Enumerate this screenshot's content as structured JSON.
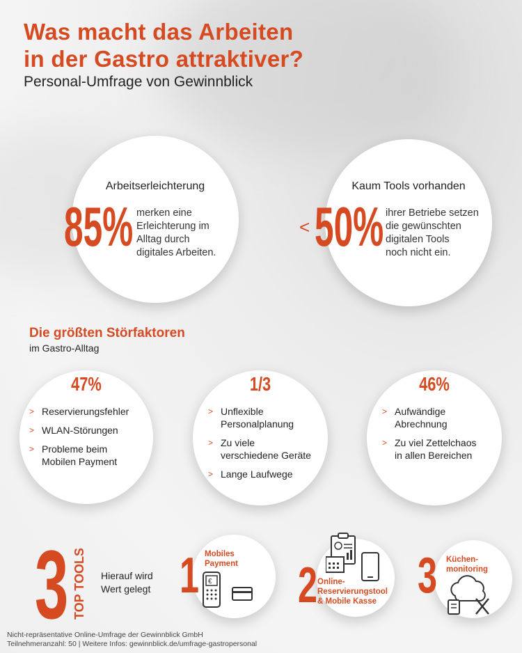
{
  "header": {
    "title_line1": "Was macht das Arbeiten",
    "title_line2": "in der Gastro attraktiver?",
    "subtitle": "Personal-Umfrage von Gewinnblick"
  },
  "stats": [
    {
      "title": "Arbeitserleichterung",
      "prefix": "",
      "value": "85%",
      "description_lines": [
        "merken eine",
        "Erleichterung im",
        "Alltag durch",
        "digitales Arbeiten."
      ]
    },
    {
      "title": "Kaum Tools vorhanden",
      "prefix": "<",
      "value": "50%",
      "description_lines": [
        "ihrer Betriebe setzen",
        "die gewünschten",
        "digitalen Tools",
        "noch nicht ein."
      ]
    }
  ],
  "disruptors": {
    "title": "Die größten Störfaktoren",
    "subtitle": "im Gastro-Alltag",
    "groups": [
      {
        "value": "47%",
        "items": [
          [
            "Reservierungsfehler"
          ],
          [
            "WLAN-Störungen"
          ],
          [
            "Probleme beim",
            "Mobilen Payment"
          ]
        ]
      },
      {
        "value": "1/3",
        "items": [
          [
            "Unflexible",
            "Personalplanung"
          ],
          [
            "Zu viele",
            "verschiedene Geräte"
          ],
          [
            "Lange Laufwege"
          ]
        ]
      },
      {
        "value": "46%",
        "items": [
          [
            "Aufwändige",
            "Abrechnung"
          ],
          [
            "Zu viel Zettelchaos",
            "in allen Bereichen"
          ]
        ]
      }
    ]
  },
  "top_tools": {
    "number": "3",
    "label": "TOP TOOLS",
    "note_line1": "Hierauf wird",
    "note_line2": "Wert gelegt",
    "tools": [
      {
        "rank": "1",
        "label_lines": [
          "Mobiles",
          "Payment"
        ],
        "icon": "mobile-payment-icon"
      },
      {
        "rank": "2",
        "label_lines": [
          "Online-",
          "Reservierungstool",
          "& Mobile Kasse"
        ],
        "icon": "reservation-tablet-icon"
      },
      {
        "rank": "3",
        "label_lines": [
          "Küchen-",
          "monitoring"
        ],
        "icon": "kitchen-cloud-icon"
      }
    ]
  },
  "footer": {
    "line1": "Nicht-repräsentative Online-Umfrage der Gewinnblick GmbH",
    "line2": "Teilnehmeranzahl: 50 | Weitere Infos: gewinnblick.de/umfrage-gastropersonal"
  },
  "colors": {
    "accent": "#d64a22",
    "text": "#222222",
    "circle": "#ffffff"
  }
}
